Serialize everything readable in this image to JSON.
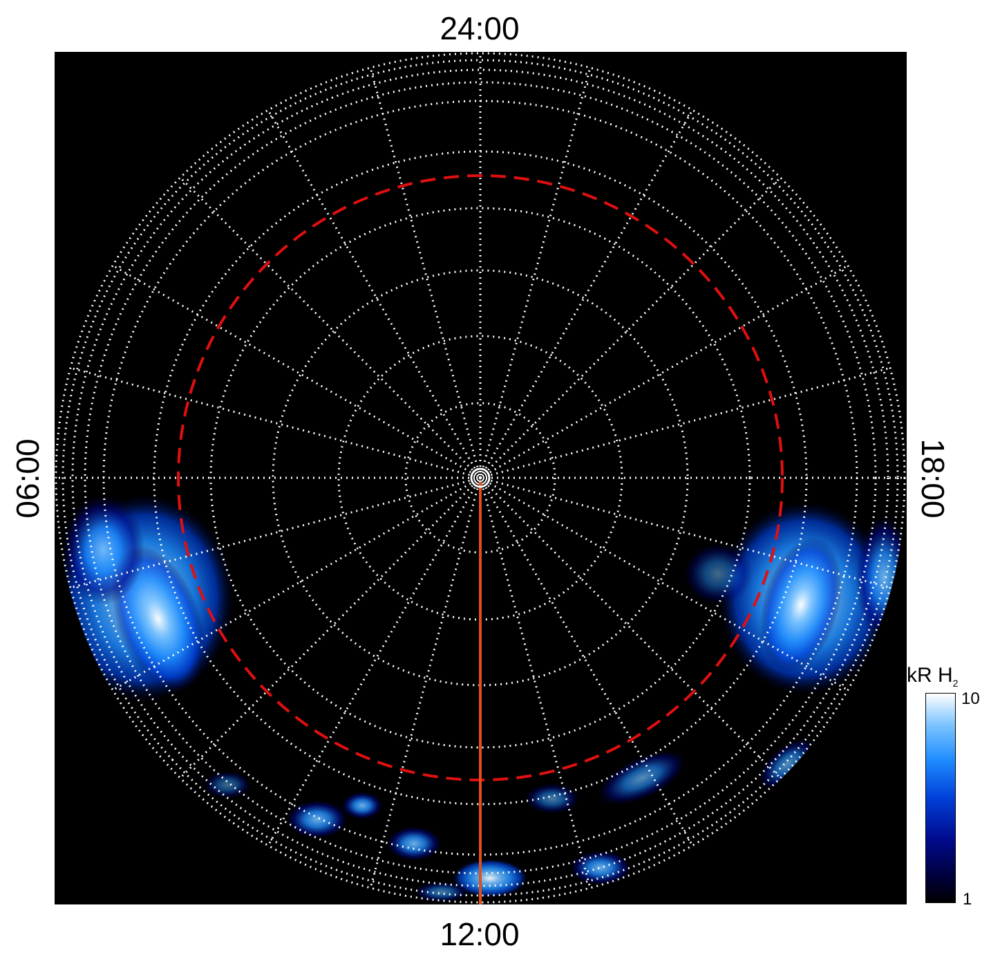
{
  "labels": {
    "top": "24:00",
    "bottom": "12:00",
    "left": "06:00",
    "right": "18:00"
  },
  "colorbar": {
    "title": "kR H",
    "subscript": "2",
    "max": "10",
    "min": "1"
  },
  "colors": {
    "background": "#000000",
    "grid": "#ffffff",
    "dashed_circle": "#e01010",
    "meridian_line": "#e0501a",
    "emission": "#1e8cff"
  }
}
